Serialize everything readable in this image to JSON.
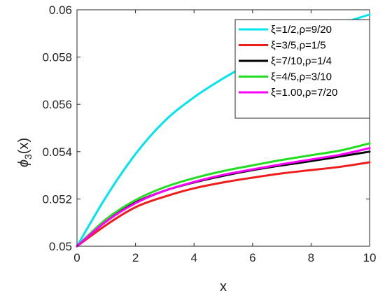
{
  "chart_data": {
    "type": "line",
    "xlabel": "x",
    "ylabel": "ϕ",
    "ylabel_sub": "3",
    "ylabel_tail": "(x)",
    "xlim": [
      0,
      10
    ],
    "ylim": [
      0.05,
      0.06
    ],
    "xticks": [
      "0",
      "2",
      "4",
      "6",
      "8",
      "10"
    ],
    "yticks": [
      "0.05",
      "0.052",
      "0.054",
      "0.056",
      "0.058",
      "0.06"
    ],
    "grid": false,
    "legend_position": "top-right",
    "series": [
      {
        "name": "ξ=1/2,ρ=9/20",
        "color": "#00e5ee",
        "x": [
          0,
          1,
          2,
          3,
          4,
          5,
          6,
          7,
          8,
          9,
          10
        ],
        "y": [
          0.05,
          0.0521,
          0.0539,
          0.0553,
          0.0563,
          0.0571,
          0.0578,
          0.0584,
          0.0589,
          0.0594,
          0.0598
        ]
      },
      {
        "name": "ξ=3/5,ρ=1/5",
        "color": "#ee1c1c",
        "x": [
          0,
          1,
          2,
          3,
          4,
          5,
          6,
          7,
          8,
          9,
          10
        ],
        "y": [
          0.05,
          0.0509,
          0.05165,
          0.0521,
          0.05245,
          0.0527,
          0.0529,
          0.05308,
          0.05322,
          0.05336,
          0.05355
        ]
      },
      {
        "name": "ξ=7/10,ρ=1/4",
        "color": "#000000",
        "x": [
          0,
          1,
          2,
          3,
          4,
          5,
          6,
          7,
          8,
          9,
          10
        ],
        "y": [
          0.05,
          0.0511,
          0.05185,
          0.05235,
          0.0527,
          0.05298,
          0.05322,
          0.05342,
          0.0536,
          0.0538,
          0.054
        ]
      },
      {
        "name": "ξ=4/5,ρ=3/10",
        "color": "#22dd22",
        "x": [
          0,
          1,
          2,
          3,
          4,
          5,
          6,
          7,
          8,
          9,
          10
        ],
        "y": [
          0.05,
          0.05115,
          0.05195,
          0.0525,
          0.05288,
          0.05318,
          0.05342,
          0.05365,
          0.05385,
          0.05405,
          0.05435
        ]
      },
      {
        "name": "ξ=1.00,ρ=7/20",
        "color": "#ff00ff",
        "x": [
          0,
          1,
          2,
          3,
          4,
          5,
          6,
          7,
          8,
          9,
          10
        ],
        "y": [
          0.05,
          0.05105,
          0.05182,
          0.05235,
          0.05272,
          0.05302,
          0.05325,
          0.05347,
          0.05367,
          0.05387,
          0.05415
        ]
      }
    ]
  }
}
